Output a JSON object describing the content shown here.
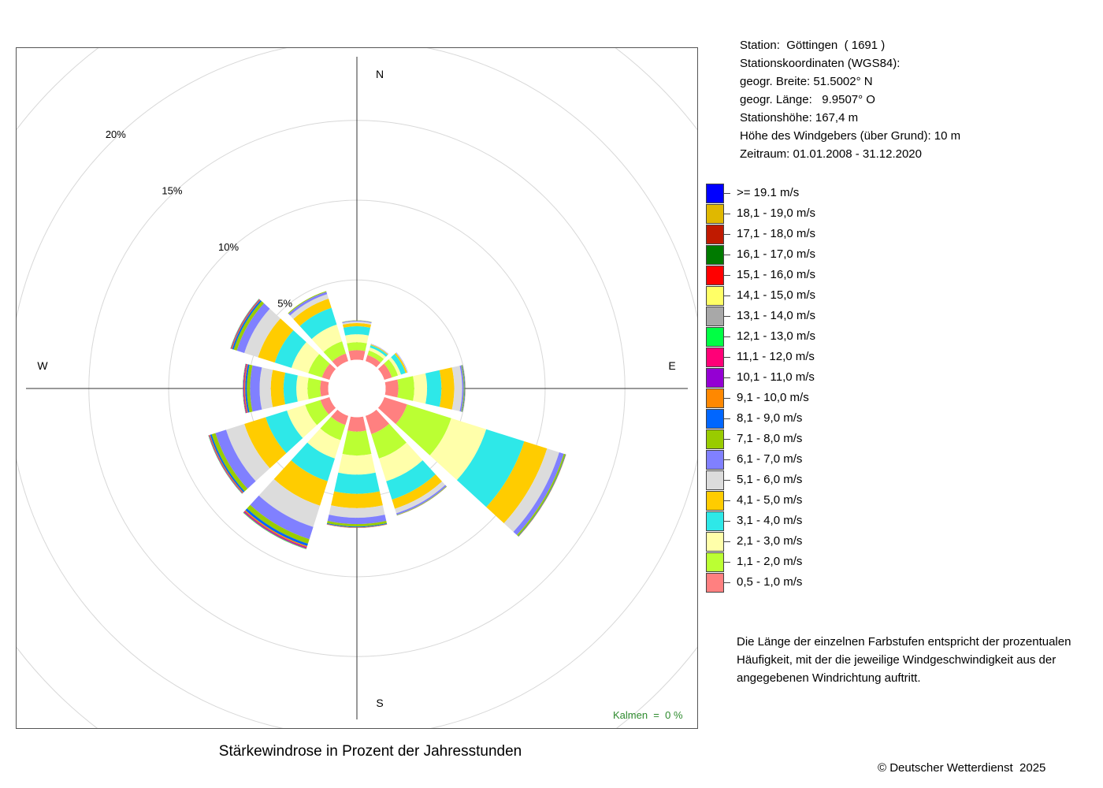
{
  "station": {
    "lines": [
      "Station:  Göttingen  ( 1691 )",
      "Stationskoordinaten (WGS84):",
      "geogr. Breite: 51.5002° N",
      "geogr. Länge:   9.9507° O",
      "Stationshöhe: 167,4 m",
      "Höhe des Windgebers (über Grund): 10 m",
      "Zeitraum: 01.01.2008 - 31.12.2020"
    ]
  },
  "legend": {
    "items": [
      {
        "label": ">= 19.1 m/s",
        "color": "#0000ff"
      },
      {
        "label": "18,1 - 19,0 m/s",
        "color": "#e0b800"
      },
      {
        "label": "17,1 - 18,0 m/s",
        "color": "#c01a00"
      },
      {
        "label": "16,1 - 17,0 m/s",
        "color": "#007a00"
      },
      {
        "label": "15,1 - 16,0 m/s",
        "color": "#ff0000"
      },
      {
        "label": "14,1 - 15,0 m/s",
        "color": "#ffff66"
      },
      {
        "label": "13,1 - 14,0 m/s",
        "color": "#a8a8a8"
      },
      {
        "label": "12,1 - 13,0 m/s",
        "color": "#00ff44"
      },
      {
        "label": "11,1 - 12,0 m/s",
        "color": "#ff0077"
      },
      {
        "label": "10,1 - 11,0 m/s",
        "color": "#9400d3"
      },
      {
        "label": "9,1 - 10,0 m/s",
        "color": "#ff8800"
      },
      {
        "label": "8,1 - 9,0 m/s",
        "color": "#0066ff"
      },
      {
        "label": "7,1 - 8,0 m/s",
        "color": "#99cc00"
      },
      {
        "label": "6,1 - 7,0 m/s",
        "color": "#8080ff"
      },
      {
        "label": "5,1 - 6,0 m/s",
        "color": "#dcdcdc"
      },
      {
        "label": "4,1 - 5,0 m/s",
        "color": "#ffcc00"
      },
      {
        "label": "3,1 - 4,0 m/s",
        "color": "#2ee8e8"
      },
      {
        "label": "2,1 - 3,0 m/s",
        "color": "#ffffaa"
      },
      {
        "label": "1,1 - 2,0 m/s",
        "color": "#bbff33"
      },
      {
        "label": "0,5 - 1,0 m/s",
        "color": "#ff8080"
      }
    ]
  },
  "note": {
    "lines": [
      "Die Länge der einzelnen Farbstufen entspricht der prozentualen",
      "Häufigkeit, mit der die jeweilige Windgeschwindigkeit aus der",
      "angegebenen Windrichtung auftritt."
    ]
  },
  "chart_title": "Stärkewindrose in Prozent der Jahresstunden",
  "calm_label": "Kalmen  =  0 %",
  "copyright": "© Deutscher Wetterdienst  2025",
  "chart_data": {
    "type": "polar-stacked-bar",
    "title": "Stärkewindrose in Prozent der Jahresstunden",
    "compass_labels": {
      "N": "N",
      "E": "E",
      "S": "S",
      "W": "W"
    },
    "ring_percent": [
      5,
      10,
      15,
      20
    ],
    "ring_labels": [
      "5%",
      "10%",
      "15%",
      "20%"
    ],
    "r_max_percent": 20,
    "directions_deg": [
      0,
      30,
      60,
      90,
      120,
      150,
      180,
      210,
      240,
      270,
      300,
      330
    ],
    "speed_classes": [
      "0,5 - 1,0 m/s",
      "1,1 - 2,0 m/s",
      "2,1 - 3,0 m/s",
      "3,1 - 4,0 m/s",
      "4,1 - 5,0 m/s",
      "5,1 - 6,0 m/s",
      "6,1 - 7,0 m/s",
      "7,1 - 8,0 m/s",
      "8,1 - 9,0 m/s",
      "9,1 - 10,0 m/s",
      "10,1 - 11,0 m/s",
      "11,1 - 12,0 m/s",
      "12,1 - 13,0 m/s",
      "13,1 - 14,0 m/s",
      "14,1 - 15,0 m/s",
      "15,1 - 16,0 m/s",
      "16,1 - 17,0 m/s",
      "17,1 - 18,0 m/s",
      "18,1 - 19,0 m/s",
      ">= 19.1 m/s"
    ],
    "class_colors": [
      "#ff8080",
      "#bbff33",
      "#ffffaa",
      "#2ee8e8",
      "#ffcc00",
      "#dcdcdc",
      "#8080ff",
      "#99cc00",
      "#0066ff",
      "#ff8800",
      "#9400d3",
      "#ff0077",
      "#00ff44",
      "#a8a8a8",
      "#ffff66",
      "#ff0000",
      "#007a00",
      "#c01a00",
      "#e0b800",
      "#0000ff"
    ],
    "inner_offset_percent": 1.8,
    "sectors": [
      {
        "direction": "N",
        "deg": 0,
        "values": [
          0.6,
          0.5,
          0.5,
          0.5,
          0.2,
          0.1,
          0.05,
          0.02
        ]
      },
      {
        "direction": "NNE",
        "deg": 30,
        "values": [
          0.4,
          0.3,
          0.2,
          0.15,
          0.05,
          0.02,
          0.02
        ]
      },
      {
        "direction": "ENE",
        "deg": 60,
        "values": [
          0.5,
          0.4,
          0.2,
          0.3,
          0.1,
          0.03,
          0.02
        ]
      },
      {
        "direction": "E",
        "deg": 90,
        "values": [
          0.8,
          1.0,
          0.8,
          0.9,
          0.8,
          0.5,
          0.1,
          0.05,
          0.03,
          0.01
        ]
      },
      {
        "direction": "ESE",
        "deg": 120,
        "values": [
          1.5,
          2.9,
          2.3,
          2.5,
          1.5,
          0.8,
          0.3,
          0.1,
          0.03,
          0.02
        ]
      },
      {
        "direction": "SSE",
        "deg": 150,
        "values": [
          1.2,
          1.6,
          1.5,
          1.2,
          0.6,
          0.3,
          0.1,
          0.03,
          0.01,
          0.01
        ]
      },
      {
        "direction": "S",
        "deg": 180,
        "values": [
          0.9,
          1.5,
          1.2,
          1.2,
          0.9,
          0.6,
          0.4,
          0.15,
          0.05,
          0.03,
          0.01
        ]
      },
      {
        "direction": "SSW",
        "deg": 210,
        "values": [
          0.6,
          1.0,
          1.2,
          1.5,
          1.6,
          1.4,
          0.8,
          0.3,
          0.15,
          0.08,
          0.05,
          0.04,
          0.03,
          0.02
        ]
      },
      {
        "direction": "WSW",
        "deg": 240,
        "values": [
          0.6,
          1.0,
          1.2,
          1.4,
          1.4,
          1.2,
          0.7,
          0.25,
          0.1,
          0.05,
          0.03,
          0.02,
          0.02
        ]
      },
      {
        "direction": "W",
        "deg": 270,
        "values": [
          0.5,
          0.8,
          0.7,
          0.8,
          0.8,
          0.7,
          0.6,
          0.2,
          0.1,
          0.06,
          0.04,
          0.03,
          0.02,
          0.01
        ]
      },
      {
        "direction": "WNW",
        "deg": 300,
        "values": [
          0.5,
          0.9,
          1.1,
          1.1,
          1.1,
          0.9,
          0.5,
          0.2,
          0.1,
          0.05,
          0.03,
          0.02,
          0.02
        ]
      },
      {
        "direction": "NNW",
        "deg": 330,
        "values": [
          0.5,
          0.8,
          1.1,
          1.1,
          0.6,
          0.3,
          0.15,
          0.05
        ]
      }
    ]
  }
}
